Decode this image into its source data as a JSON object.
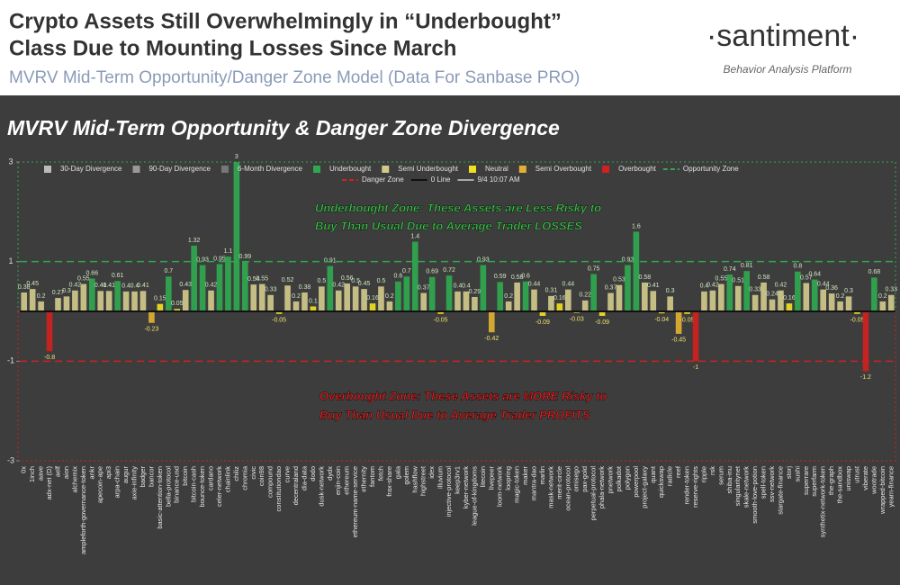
{
  "header": {
    "title_line1": "Crypto Assets Still Overwhelmingly in “Underbought”",
    "title_line2": "Class Due to Mounting Losses Since March",
    "subtitle": "MVRV Mid-Term Opportunity/Danger Zone Model (Data For Sanbase PRO)",
    "logo": "·santiment·",
    "tagline": "Behavior Analysis Platform"
  },
  "chart_data": {
    "type": "bar",
    "title": "MVRV Mid-Term Opportunity & Danger Zone Divergence",
    "annotations": [
      {
        "text": "Underbought Zone: These Assets are Less Risky to",
        "color": "#3ec04a"
      },
      {
        "text": "Buy Than Usual Due to Average Trader LOSSES",
        "color": "#3ec04a"
      },
      {
        "text": "Overbought Zone: These Assets are MORE Risky to",
        "color": "#e02020"
      },
      {
        "text": "Buy Than Usual Due to Average Trader PROFITS",
        "color": "#e02020"
      }
    ],
    "legend": [
      {
        "label": "30-Day Divergence",
        "color": "#bbbbbb"
      },
      {
        "label": "90-Day Divergence",
        "color": "#999999"
      },
      {
        "label": "6-Month Divergence",
        "color": "#777777"
      },
      {
        "label": "Underbought",
        "color": "#2fa84f"
      },
      {
        "label": "Semi Underbought",
        "color": "#cfc98a"
      },
      {
        "label": "Neutral",
        "color": "#f0e020"
      },
      {
        "label": "Semi Overbought",
        "color": "#e0b030"
      },
      {
        "label": "Overbought",
        "color": "#d02020"
      },
      {
        "label": "Opportunity Zone",
        "color": "#2fa84f",
        "line": "dash"
      },
      {
        "label": "Danger Zone",
        "color": "#d02020",
        "line": "dash"
      },
      {
        "label": "0 Line",
        "color": "#111111",
        "line": "solid"
      },
      {
        "label": "9/4 10:07 AM",
        "color": "#aaaaaa",
        "line": "solid"
      }
    ],
    "opportunity_zone": 1,
    "danger_zone": -1,
    "categories": [
      "0x",
      "1inch",
      "aave",
      "adx-net (D)",
      "aelf",
      "aion",
      "alchemix",
      "ampleforth-governance-token",
      "ankr",
      "apecoin-ape",
      "api3",
      "arpa-chain",
      "augur",
      "axie-infinity",
      "badger",
      "bancor",
      "basic-attention-token",
      "bella-protocol",
      "binance-usd",
      "bitcoin",
      "bitcoin-cash",
      "bounce-token",
      "cardano",
      "celer-network",
      "chainlink",
      "chiliz",
      "chromia",
      "civic",
      "coin98",
      "compound",
      "constitutiondao",
      "curve",
      "decentraland",
      "dia-data",
      "dodo",
      "dusk-network",
      "dydx",
      "enjin-coin",
      "ethereum",
      "ethereum-name-service",
      "ethernity",
      "fantom",
      "fetch",
      "frax-share",
      "gala",
      "golem",
      "hashflow",
      "highstreet",
      "idex",
      "illuvium",
      "injective-protocol",
      "keep3rv1",
      "kyber-network",
      "league-of-kingdoms",
      "litecoin",
      "livepeer",
      "loom-network",
      "loopring",
      "magic-token",
      "maker",
      "mantra-dao",
      "marlin",
      "mask-network",
      "merit-circle",
      "ocean-protocol",
      "omisego",
      "pax-gold",
      "perpetual-protocol",
      "phala-network",
      "pnetwork",
      "polkadot",
      "polygon",
      "powerpool",
      "project-galaxy",
      "quant",
      "quickswap",
      "radicle",
      "reef",
      "render-token",
      "reserve-rights",
      "ripple",
      "rsk",
      "serum",
      "shiba-inu",
      "singularitynet",
      "skale-network",
      "smooth-love-potion",
      "spell-token",
      "ssv-network",
      "stargate-finance",
      "storj",
      "sushi",
      "superrare",
      "superfarm",
      "synthetix-network-token",
      "the-graph",
      "the-sandbox",
      "uniswap",
      "utrust",
      "viberate",
      "wootrade",
      "wrapped-bitcoin",
      "yearn-finance"
    ],
    "values": [
      0.38,
      0.45,
      0.2,
      -0.8,
      0.27,
      0.3,
      0.42,
      0.55,
      0.66,
      0.41,
      0.41,
      0.61,
      0.4,
      0.4,
      0.41,
      -0.23,
      0.15,
      0.7,
      0.05,
      0.43,
      1.32,
      0.93,
      0.42,
      0.95,
      1.1,
      3,
      0.99,
      0.54,
      0.55,
      0.33,
      -0.05,
      0.52,
      0.2,
      0.38,
      0.1,
      0.5,
      0.91,
      0.42,
      0.56,
      0.5,
      0.45,
      0.16,
      0.5,
      0.2,
      0.6,
      0.7,
      1.4,
      0.37,
      0.69,
      -0.05,
      0.72,
      0.4,
      0.4,
      0.29,
      0.93,
      -0.42,
      0.59,
      0.2,
      0.58,
      0.6,
      0.44,
      -0.09,
      0.31,
      0.16,
      0.44,
      -0.03,
      0.22,
      0.75,
      -0.09,
      0.37,
      0.53,
      0.93,
      1.6,
      0.58,
      0.41,
      -0.04,
      0.3,
      -0.45,
      -0.05,
      -1,
      0.4,
      0.42,
      0.55,
      0.74,
      0.51,
      0.81,
      0.33,
      0.58,
      0.24,
      0.42,
      0.16,
      0.8,
      0.57,
      0.64,
      0.44,
      0.36,
      0.2,
      0.3,
      -0.05,
      -1.2,
      0.68,
      0.2,
      0.33
    ],
    "bar_colors": [
      "#cfc98a",
      "#cfc98a",
      "#cfc98a",
      "#d02020",
      "#cfc98a",
      "#cfc98a",
      "#cfc98a",
      "#cfc98a",
      "#2fa84f",
      "#cfc98a",
      "#cfc98a",
      "#2fa84f",
      "#cfc98a",
      "#cfc98a",
      "#cfc98a",
      "#e0b030",
      "#f0e020",
      "#2fa84f",
      "#f0e020",
      "#cfc98a",
      "#2fa84f",
      "#2fa84f",
      "#cfc98a",
      "#2fa84f",
      "#2fa84f",
      "#2fa84f",
      "#2fa84f",
      "#cfc98a",
      "#cfc98a",
      "#cfc98a",
      "#f0e020",
      "#cfc98a",
      "#cfc98a",
      "#cfc98a",
      "#f0e020",
      "#cfc98a",
      "#2fa84f",
      "#cfc98a",
      "#cfc98a",
      "#cfc98a",
      "#cfc98a",
      "#f0e020",
      "#cfc98a",
      "#cfc98a",
      "#2fa84f",
      "#2fa84f",
      "#2fa84f",
      "#cfc98a",
      "#2fa84f",
      "#f0e020",
      "#2fa84f",
      "#cfc98a",
      "#cfc98a",
      "#cfc98a",
      "#2fa84f",
      "#e0b030",
      "#2fa84f",
      "#cfc98a",
      "#cfc98a",
      "#2fa84f",
      "#cfc98a",
      "#f0e020",
      "#cfc98a",
      "#f0e020",
      "#cfc98a",
      "#f0e020",
      "#cfc98a",
      "#2fa84f",
      "#f0e020",
      "#cfc98a",
      "#cfc98a",
      "#2fa84f",
      "#2fa84f",
      "#cfc98a",
      "#cfc98a",
      "#f0e020",
      "#cfc98a",
      "#e0b030",
      "#f0e020",
      "#d02020",
      "#cfc98a",
      "#cfc98a",
      "#cfc98a",
      "#2fa84f",
      "#cfc98a",
      "#2fa84f",
      "#cfc98a",
      "#cfc98a",
      "#cfc98a",
      "#cfc98a",
      "#f0e020",
      "#2fa84f",
      "#cfc98a",
      "#2fa84f",
      "#cfc98a",
      "#cfc98a",
      "#cfc98a",
      "#cfc98a",
      "#f0e020",
      "#d02020",
      "#2fa84f",
      "#cfc98a",
      "#cfc98a"
    ],
    "ylim": [
      -3,
      3
    ],
    "yticks": [
      -3,
      -1,
      1,
      3
    ]
  }
}
